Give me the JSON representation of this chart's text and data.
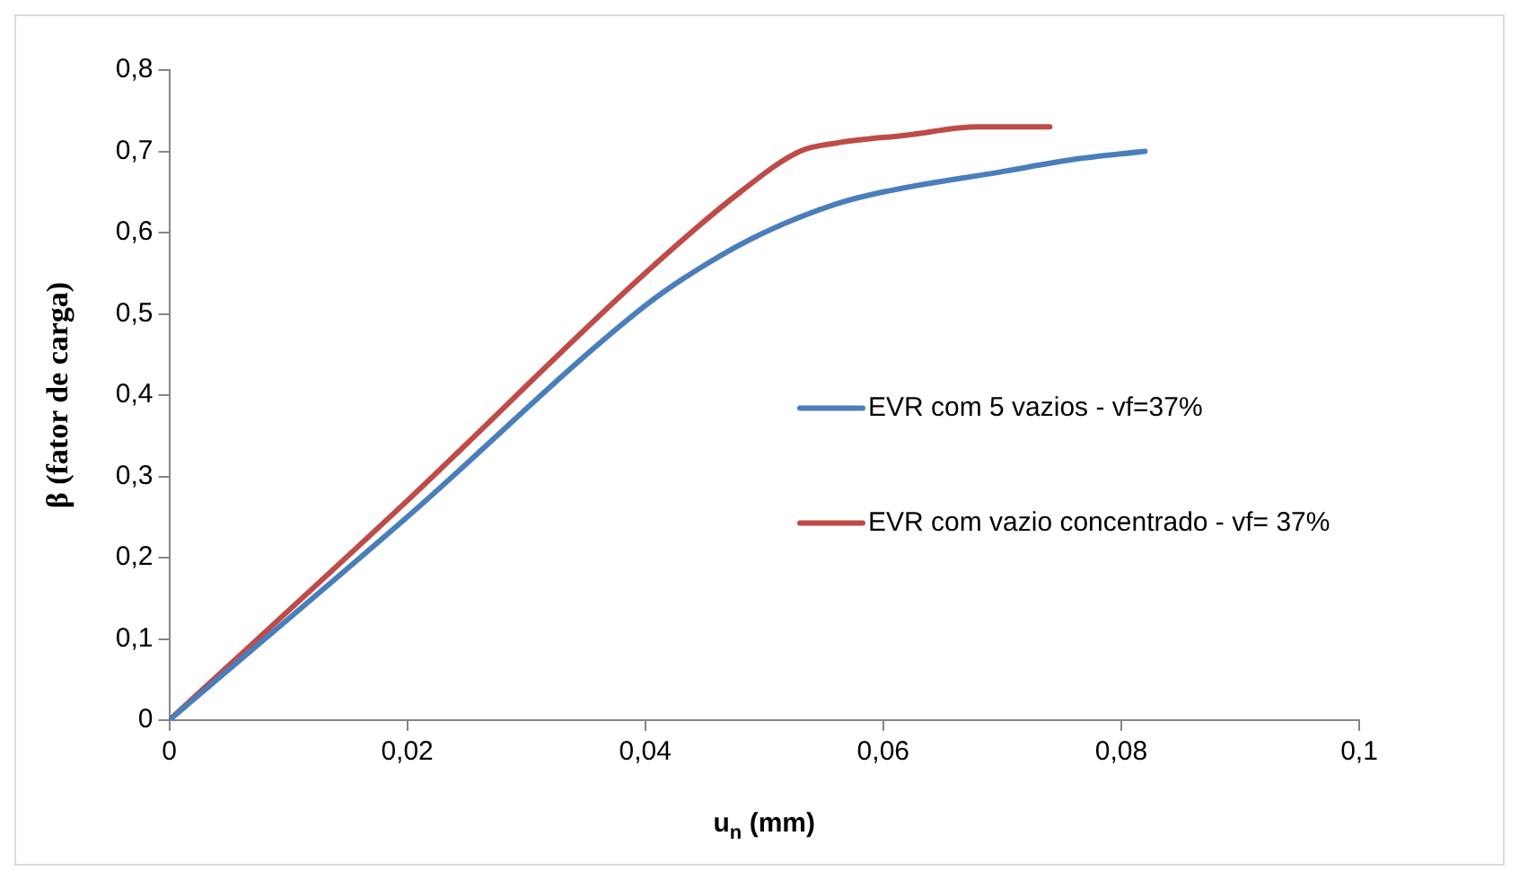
{
  "chart_data": {
    "type": "line",
    "xlabel": "u$_{n}$ (mm)",
    "ylabel": "β (fator de carga)",
    "xlim": [
      0,
      0.1
    ],
    "xticks": [
      0,
      {
        "value": 0.02,
        "label": "0,02"
      },
      {
        "value": 0.04,
        "label": "0,04"
      },
      {
        "value": 0.06,
        "label": "0,06"
      },
      {
        "value": 0.08,
        "label": "0,08"
      },
      {
        "value": 0.1,
        "label": "0,1"
      }
    ],
    "ylim": [
      0,
      0.8
    ],
    "yticks": [
      0,
      {
        "value": 0.1,
        "label": "0,1"
      },
      {
        "value": 0.2,
        "label": "0,2"
      },
      {
        "value": 0.3,
        "label": "0,3"
      },
      {
        "value": 0.4,
        "label": "0,4"
      },
      {
        "value": 0.5,
        "label": "0,5"
      },
      {
        "value": 0.6,
        "label": "0,6"
      },
      {
        "value": 0.7,
        "label": "0,7"
      },
      {
        "value": 0.8,
        "label": "0,8"
      }
    ],
    "grid": false,
    "legend": "right",
    "marker": "none",
    "line_style": "solid",
    "series": [
      {
        "name": "EVR com 5 vazios - vf=37%",
        "color": "#4a7ebb",
        "x": [
          0,
          0.02,
          0.04,
          0.045,
          0.05,
          0.056,
          0.06,
          0.07,
          0.076,
          0.082
        ],
        "values": [
          0,
          0.25,
          0.51,
          0.56,
          0.6,
          0.635,
          0.65,
          0.675,
          0.69,
          0.7
        ]
      },
      {
        "name": "EVR com vazio concentrado - vf= 37%",
        "color": "#be4b48",
        "x": [
          0,
          0.02,
          0.04,
          0.048,
          0.053,
          0.056,
          0.062,
          0.068,
          0.074
        ],
        "values": [
          0,
          0.27,
          0.55,
          0.65,
          0.7,
          0.71,
          0.72,
          0.73,
          0.73
        ]
      }
    ]
  }
}
